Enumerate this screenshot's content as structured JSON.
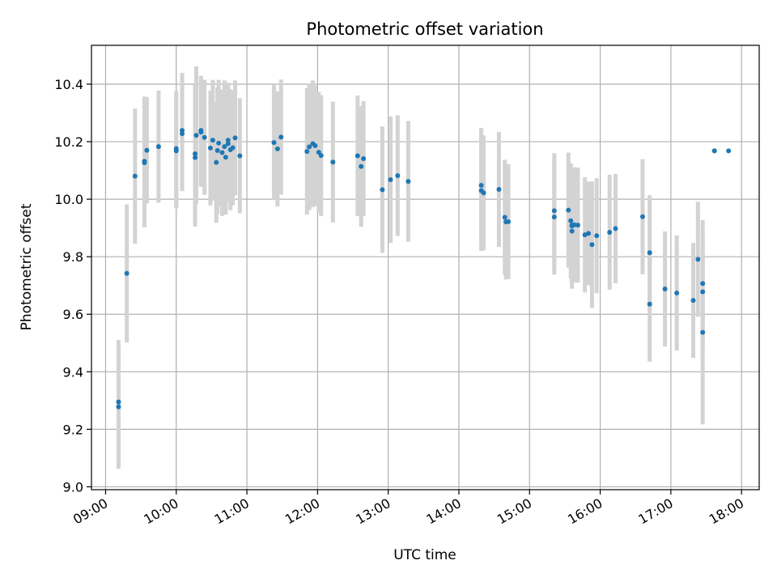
{
  "chart_data": {
    "type": "scatter",
    "title": "Photometric offset variation",
    "xlabel": "UTC time",
    "ylabel": "Photometric offset",
    "x_unit": "UTC time (HH:MM)",
    "xlim": [
      "08:48",
      "18:15"
    ],
    "ylim": [
      8.99,
      10.535
    ],
    "x_ticks": [
      "09:00",
      "10:00",
      "11:00",
      "12:00",
      "13:00",
      "14:00",
      "15:00",
      "16:00",
      "17:00",
      "18:00"
    ],
    "y_ticks": [
      "9.0",
      "9.2",
      "9.4",
      "9.6",
      "9.8",
      "10.0",
      "10.2",
      "10.4"
    ],
    "grid": true,
    "legend": "none",
    "colors": {
      "point": "#1f77b4",
      "errorbar": "#d3d3d3",
      "grid": "#b0b0b0"
    },
    "series": [
      {
        "x": [
          "09:11",
          "09:11",
          "09:18",
          "09:25",
          "09:33",
          "09:33",
          "09:35",
          "09:45",
          "10:00",
          "10:00",
          "10:05",
          "10:05",
          "10:16",
          "10:16",
          "10:17",
          "10:21",
          "10:21",
          "10:24",
          "10:29",
          "10:31",
          "10:34",
          "10:35",
          "10:36",
          "10:39",
          "10:41",
          "10:42",
          "10:44",
          "10:44",
          "10:46",
          "10:48",
          "10:50",
          "10:54",
          "11:23",
          "11:26",
          "11:29",
          "11:51",
          "11:53",
          "11:56",
          "11:58",
          "12:01",
          "12:03",
          "12:13",
          "12:34",
          "12:37",
          "12:39",
          "12:55",
          "13:02",
          "13:08",
          "13:17",
          "14:19",
          "14:19",
          "14:21",
          "14:34",
          "14:39",
          "14:40",
          "14:42",
          "15:21",
          "15:21",
          "15:33",
          "15:35",
          "15:36",
          "15:36",
          "15:36",
          "15:38",
          "15:41",
          "15:47",
          "15:50",
          "15:53",
          "15:57",
          "16:08",
          "16:13",
          "16:36",
          "16:42",
          "16:42",
          "16:55",
          "17:05",
          "17:19",
          "17:23",
          "17:27",
          "17:27",
          "17:27",
          "17:37",
          "17:37",
          "17:49"
        ],
        "y": [
          9.278,
          9.295,
          9.742,
          10.08,
          10.127,
          10.132,
          10.17,
          10.183,
          10.168,
          10.176,
          10.228,
          10.239,
          10.145,
          10.158,
          10.222,
          10.233,
          10.239,
          10.215,
          10.178,
          10.205,
          10.128,
          10.169,
          10.195,
          10.162,
          10.183,
          10.146,
          10.193,
          10.205,
          10.172,
          10.179,
          10.213,
          10.151,
          10.197,
          10.175,
          10.216,
          10.166,
          10.182,
          10.193,
          10.186,
          10.163,
          10.152,
          10.129,
          10.151,
          10.114,
          10.141,
          10.033,
          10.068,
          10.082,
          10.062,
          10.03,
          10.048,
          10.022,
          10.034,
          9.937,
          9.921,
          9.922,
          9.938,
          9.96,
          9.962,
          9.925,
          9.91,
          9.889,
          9.907,
          9.911,
          9.91,
          9.876,
          9.881,
          9.842,
          9.873,
          9.885,
          9.898,
          9.939,
          9.814,
          9.635,
          9.688,
          9.674,
          9.648,
          9.791,
          9.707,
          9.678,
          9.537,
          10.168,
          10.168,
          10.168
        ],
        "err": [
          0.215,
          0.215,
          0.24,
          0.235,
          0.225,
          0.225,
          0.185,
          0.195,
          0.2,
          0.2,
          0.2,
          0.2,
          0.24,
          0.24,
          0.24,
          0.19,
          0.19,
          0.2,
          0.2,
          0.21,
          0.21,
          0.22,
          0.22,
          0.22,
          0.23,
          0.2,
          0.2,
          0.2,
          0.21,
          0.2,
          0.2,
          0.2,
          0.2,
          0.2,
          0.2,
          0.22,
          0.22,
          0.22,
          0.21,
          0.21,
          0.21,
          0.21,
          0.21,
          0.21,
          0.2,
          0.22,
          0.22,
          0.21,
          0.21,
          0.21,
          0.2,
          0.2,
          0.2,
          0.2,
          0.2,
          0.2,
          0.2,
          0.2,
          0.2,
          0.2,
          0.2,
          0.2,
          0.2,
          0.2,
          0.2,
          0.2,
          0.18,
          0.22,
          0.2,
          0.2,
          0.19,
          0.2,
          0.2,
          0.2,
          0.2,
          0.2,
          0.2,
          0.2,
          0.22,
          0.22,
          0.32,
          0,
          0,
          0
        ]
      }
    ]
  }
}
